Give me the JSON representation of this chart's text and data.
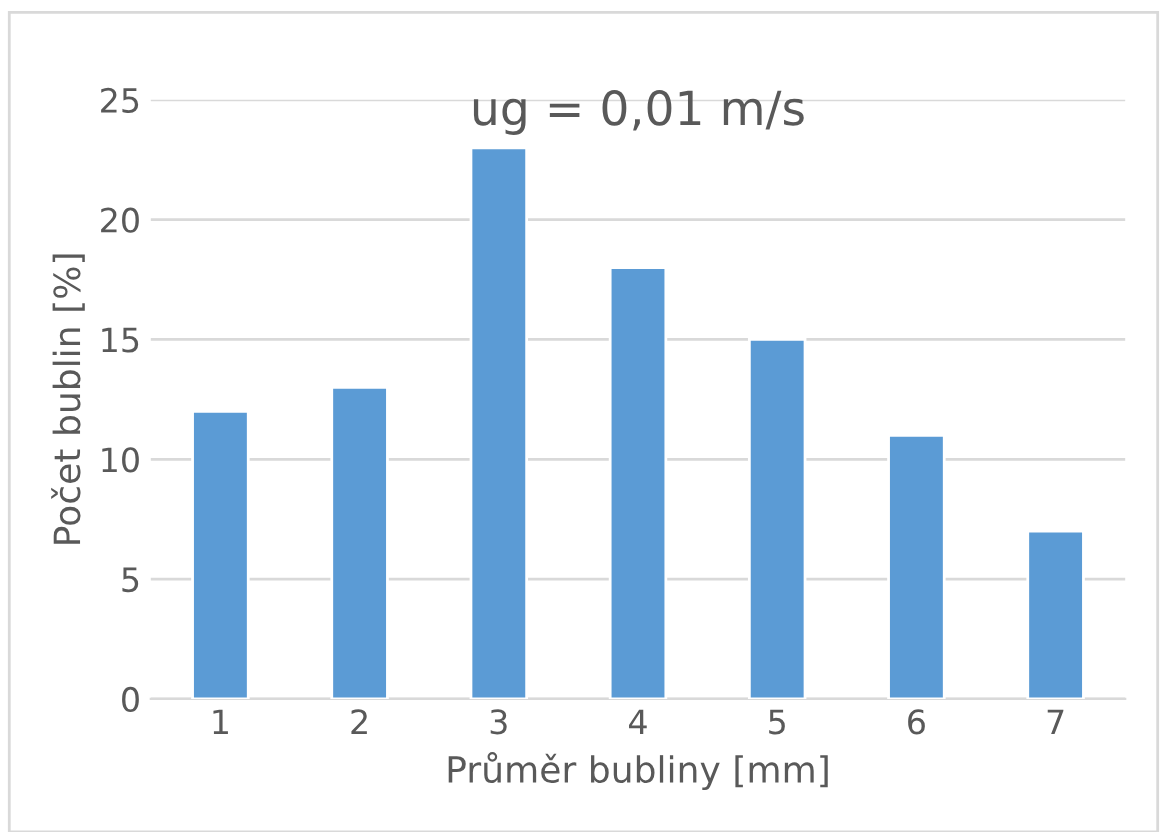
{
  "chart_data": {
    "type": "bar",
    "title": "ug = 0,01 m/s",
    "xlabel": "Průměr bubliny [mm]",
    "ylabel": "Počet bublin [%]",
    "categories": [
      "1",
      "2",
      "3",
      "4",
      "5",
      "6",
      "7"
    ],
    "values": [
      12,
      13,
      23,
      18,
      15,
      11,
      7
    ],
    "color": "#5b9bd5",
    "ylim": [
      0,
      25
    ],
    "yticks": [
      0,
      5,
      10,
      15,
      20,
      25
    ],
    "grid": "y"
  }
}
